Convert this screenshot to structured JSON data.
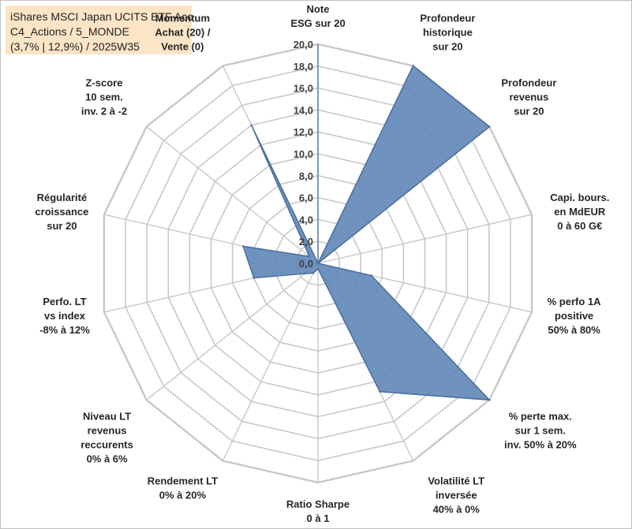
{
  "title_box": {
    "lines": [
      "iShares MSCI Japan UCITS ETF Acc",
      "C4_Actions / 5_MONDE",
      "(3,7% | 12,9%) / 2025W35"
    ]
  },
  "chart_data": {
    "type": "radar",
    "rlim": [
      0,
      20
    ],
    "tick_step": 2,
    "tick_labels": [
      "0,0",
      "2,0",
      "4,0",
      "6,0",
      "8,0",
      "10,0",
      "12,0",
      "14,0",
      "16,0",
      "18,0",
      "20,0"
    ],
    "grid": true,
    "categories": [
      [
        "Note",
        "ESG sur 20"
      ],
      [
        "Profondeur",
        "historique",
        "sur 20"
      ],
      [
        "Profondeur",
        "revenus",
        "sur 20"
      ],
      [
        "Capi. bours.",
        "en MdEUR",
        "0 à 60 G€"
      ],
      [
        "% perfo 1A",
        "positive",
        "50% à 80%"
      ],
      [
        "% perte max.",
        "sur 1 sem.",
        "inv. 50% à 20%"
      ],
      [
        "Volatilité LT",
        "inversée",
        "40% à 0%"
      ],
      [
        "Ratio Sharpe",
        "0 à 1"
      ],
      [
        "Rendement LT",
        "0% à 20%"
      ],
      [
        "Niveau LT",
        "revenus",
        "reccurents",
        "0% à 6%"
      ],
      [
        "Perfo. LT",
        "vs index",
        "-8% à 12%"
      ],
      [
        "Régularité",
        "croissance",
        "sur 20"
      ],
      [
        "Z-score",
        "10 sem.",
        "inv. 2 à -2"
      ],
      [
        "Momentum",
        "Achat (20) /",
        "Vente (0)"
      ]
    ],
    "series": [
      {
        "values": [
          0,
          20,
          20,
          0,
          5,
          20,
          13,
          0.5,
          1,
          1.5,
          6,
          7,
          1,
          14
        ],
        "fill": "#5f86b8",
        "stroke": "#4a6f9e"
      }
    ],
    "colors": {
      "grid": "#c8c8c8",
      "axis": "#4a6f9e",
      "title_bg": "#fbe5c6"
    }
  }
}
